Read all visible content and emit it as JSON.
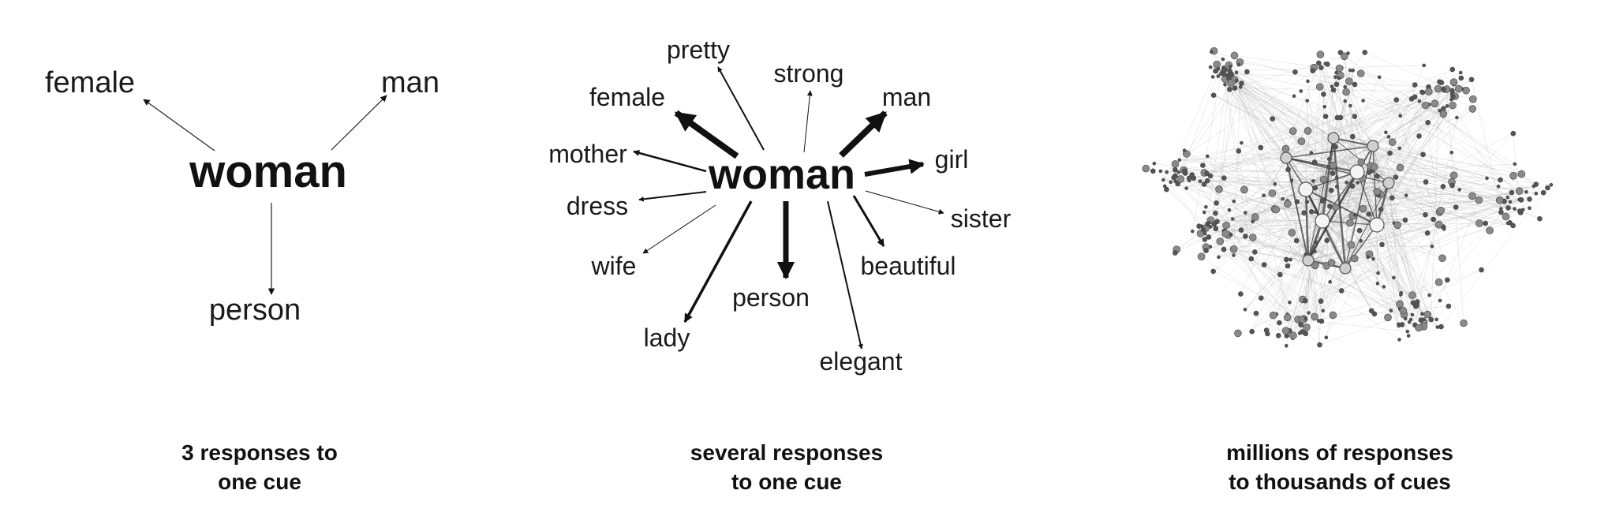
{
  "panels": [
    {
      "cue": "woman",
      "responses": [
        "female",
        "man",
        "person"
      ],
      "caption_line1": "3 responses to",
      "caption_line2": "one cue"
    },
    {
      "cue": "woman",
      "responses": [
        "pretty",
        "strong",
        "female",
        "man",
        "mother",
        "girl",
        "dress",
        "sister",
        "wife",
        "beautiful",
        "person",
        "lady",
        "elegant"
      ],
      "caption_line1": "several responses",
      "caption_line2": "to one cue"
    },
    {
      "cue": "",
      "responses": [],
      "caption_line1": "millions of responses",
      "caption_line2": "to thousands of cues"
    }
  ]
}
